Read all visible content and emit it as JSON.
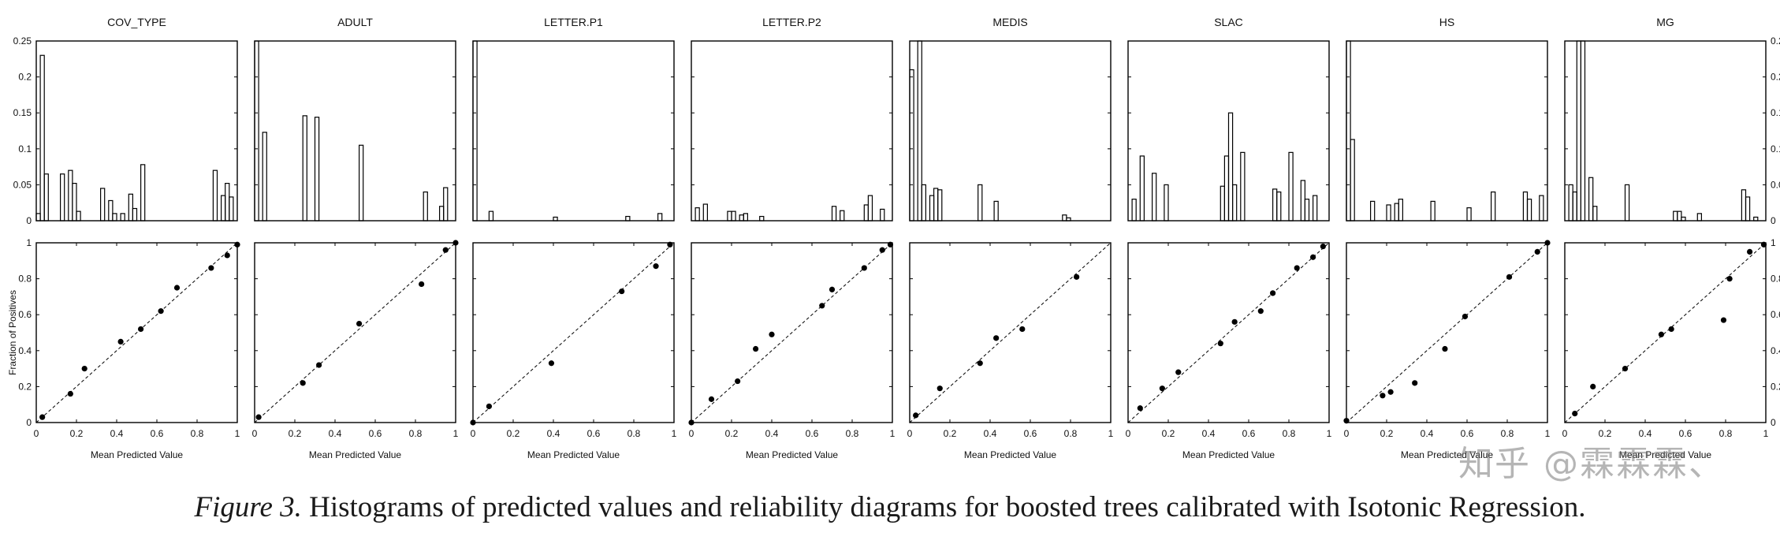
{
  "caption": {
    "lead": "Figure 3.",
    "text": " Histograms of predicted values and reliability diagrams for boosted trees calibrated with Isotonic Regression."
  },
  "watermark": "知乎 @霖霖霖、",
  "chart_data": {
    "type": "bar",
    "titles": [
      "COV_TYPE",
      "ADULT",
      "LETTER.P1",
      "LETTER.P2",
      "MEDIS",
      "SLAC",
      "HS",
      "MG"
    ],
    "hist": {
      "bins": 50,
      "ylim": [
        0,
        0.25
      ],
      "yticks": [
        "0",
        "0.05",
        "0.1",
        "0.15",
        "0.2",
        "0.25"
      ],
      "values": [
        [
          0.01,
          0.23,
          0.065,
          0,
          0,
          0,
          0.065,
          0,
          0.07,
          0.052,
          0.013,
          0,
          0,
          0,
          0,
          0,
          0.045,
          0,
          0.028,
          0.01,
          0,
          0.01,
          0,
          0.037,
          0.017,
          0,
          0.078,
          0,
          0,
          0,
          0,
          0,
          0,
          0,
          0,
          0,
          0,
          0,
          0,
          0,
          0,
          0,
          0,
          0,
          0.07,
          0,
          0.035,
          0.052,
          0.033,
          0
        ],
        [
          0.25,
          0,
          0.123,
          0,
          0,
          0,
          0,
          0,
          0,
          0,
          0,
          0,
          0.146,
          0,
          0,
          0.144,
          0,
          0,
          0,
          0,
          0,
          0,
          0,
          0,
          0,
          0,
          0.105,
          0,
          0,
          0,
          0,
          0,
          0,
          0,
          0,
          0,
          0,
          0,
          0,
          0,
          0,
          0,
          0.04,
          0,
          0,
          0,
          0.02,
          0.046,
          0,
          0
        ],
        [
          0.25,
          0,
          0,
          0,
          0.013,
          0,
          0,
          0,
          0,
          0,
          0,
          0,
          0,
          0,
          0,
          0,
          0,
          0,
          0,
          0,
          0.005,
          0,
          0,
          0,
          0,
          0,
          0,
          0,
          0,
          0,
          0,
          0,
          0,
          0,
          0,
          0,
          0,
          0,
          0.006,
          0,
          0,
          0,
          0,
          0,
          0,
          0,
          0.01,
          0,
          0,
          0
        ],
        [
          0,
          0.018,
          0,
          0.023,
          0,
          0,
          0,
          0,
          0,
          0.013,
          0.013,
          0,
          0.008,
          0.01,
          0,
          0,
          0,
          0.006,
          0,
          0,
          0,
          0,
          0,
          0,
          0,
          0,
          0,
          0,
          0,
          0,
          0,
          0,
          0,
          0,
          0,
          0.02,
          0,
          0.014,
          0,
          0,
          0,
          0,
          0,
          0.022,
          0.035,
          0,
          0,
          0.016,
          0,
          0
        ],
        [
          0.21,
          0,
          0.25,
          0.05,
          0,
          0.035,
          0.045,
          0.043,
          0,
          0,
          0,
          0,
          0,
          0,
          0,
          0,
          0,
          0.05,
          0,
          0,
          0,
          0.027,
          0,
          0,
          0,
          0,
          0,
          0,
          0,
          0,
          0,
          0,
          0,
          0,
          0,
          0,
          0,
          0,
          0.008,
          0.004,
          0,
          0,
          0,
          0,
          0,
          0,
          0,
          0,
          0,
          0
        ],
        [
          0,
          0.03,
          0,
          0.09,
          0,
          0,
          0.066,
          0,
          0,
          0.05,
          0,
          0,
          0,
          0,
          0,
          0,
          0,
          0,
          0,
          0,
          0,
          0,
          0,
          0.048,
          0.09,
          0.15,
          0.05,
          0,
          0.095,
          0,
          0,
          0,
          0,
          0,
          0,
          0,
          0.044,
          0.04,
          0,
          0,
          0.095,
          0,
          0,
          0.056,
          0.03,
          0,
          0.035,
          0,
          0,
          0
        ],
        [
          0.25,
          0.113,
          0,
          0,
          0,
          0,
          0.027,
          0,
          0,
          0,
          0.022,
          0,
          0.024,
          0.03,
          0,
          0,
          0,
          0,
          0,
          0,
          0,
          0.027,
          0,
          0,
          0,
          0,
          0,
          0,
          0,
          0,
          0.018,
          0,
          0,
          0,
          0,
          0,
          0.04,
          0,
          0,
          0,
          0,
          0,
          0,
          0,
          0.04,
          0.03,
          0,
          0,
          0.035,
          0
        ],
        [
          0,
          0.05,
          0.04,
          0.25,
          0.25,
          0,
          0.06,
          0.02,
          0,
          0,
          0,
          0,
          0,
          0,
          0,
          0.05,
          0,
          0,
          0,
          0,
          0,
          0,
          0,
          0,
          0,
          0,
          0,
          0.013,
          0.013,
          0.005,
          0,
          0,
          0,
          0.01,
          0,
          0,
          0,
          0,
          0,
          0,
          0,
          0,
          0,
          0,
          0.043,
          0.033,
          0,
          0.005,
          0,
          0
        ]
      ]
    },
    "reliability": {
      "xlabel": "Mean Predicted Value",
      "ylabel": "Fraction of Positives",
      "xlim": [
        0,
        1
      ],
      "ylim": [
        0,
        1
      ],
      "xticks": [
        "0",
        "0.2",
        "0.4",
        "0.6",
        "0.8",
        "1"
      ],
      "yticks": [
        "0",
        "0.2",
        "0.4",
        "0.6",
        "0.8",
        "1"
      ],
      "points": [
        [
          [
            0.03,
            0.03
          ],
          [
            0.17,
            0.16
          ],
          [
            0.24,
            0.3
          ],
          [
            0.42,
            0.45
          ],
          [
            0.52,
            0.52
          ],
          [
            0.62,
            0.62
          ],
          [
            0.7,
            0.75
          ],
          [
            0.87,
            0.86
          ],
          [
            0.95,
            0.93
          ],
          [
            1.0,
            0.99
          ]
        ],
        [
          [
            0.02,
            0.03
          ],
          [
            0.24,
            0.22
          ],
          [
            0.32,
            0.32
          ],
          [
            0.52,
            0.55
          ],
          [
            0.83,
            0.77
          ],
          [
            0.95,
            0.96
          ],
          [
            1.0,
            1.0
          ]
        ],
        [
          [
            0.0,
            0.0
          ],
          [
            0.08,
            0.09
          ],
          [
            0.39,
            0.33
          ],
          [
            0.74,
            0.73
          ],
          [
            0.91,
            0.87
          ],
          [
            0.98,
            0.99
          ]
        ],
        [
          [
            0.0,
            0.0
          ],
          [
            0.1,
            0.13
          ],
          [
            0.23,
            0.23
          ],
          [
            0.32,
            0.41
          ],
          [
            0.4,
            0.49
          ],
          [
            0.65,
            0.65
          ],
          [
            0.7,
            0.74
          ],
          [
            0.86,
            0.86
          ],
          [
            0.95,
            0.96
          ],
          [
            0.99,
            0.99
          ]
        ],
        [
          [
            0.03,
            0.04
          ],
          [
            0.15,
            0.19
          ],
          [
            0.35,
            0.33
          ],
          [
            0.43,
            0.47
          ],
          [
            0.56,
            0.52
          ],
          [
            0.83,
            0.81
          ]
        ],
        [
          [
            0.06,
            0.08
          ],
          [
            0.17,
            0.19
          ],
          [
            0.25,
            0.28
          ],
          [
            0.46,
            0.44
          ],
          [
            0.53,
            0.56
          ],
          [
            0.66,
            0.62
          ],
          [
            0.72,
            0.72
          ],
          [
            0.84,
            0.86
          ],
          [
            0.92,
            0.92
          ],
          [
            0.97,
            0.98
          ]
        ],
        [
          [
            0.0,
            0.01
          ],
          [
            0.18,
            0.15
          ],
          [
            0.22,
            0.17
          ],
          [
            0.34,
            0.22
          ],
          [
            0.49,
            0.41
          ],
          [
            0.59,
            0.59
          ],
          [
            0.81,
            0.81
          ],
          [
            0.95,
            0.95
          ],
          [
            1.0,
            1.0
          ]
        ],
        [
          [
            0.05,
            0.05
          ],
          [
            0.14,
            0.2
          ],
          [
            0.3,
            0.3
          ],
          [
            0.48,
            0.49
          ],
          [
            0.53,
            0.52
          ],
          [
            0.79,
            0.57
          ],
          [
            0.82,
            0.8
          ],
          [
            0.92,
            0.95
          ],
          [
            0.99,
            0.99
          ]
        ]
      ]
    }
  }
}
